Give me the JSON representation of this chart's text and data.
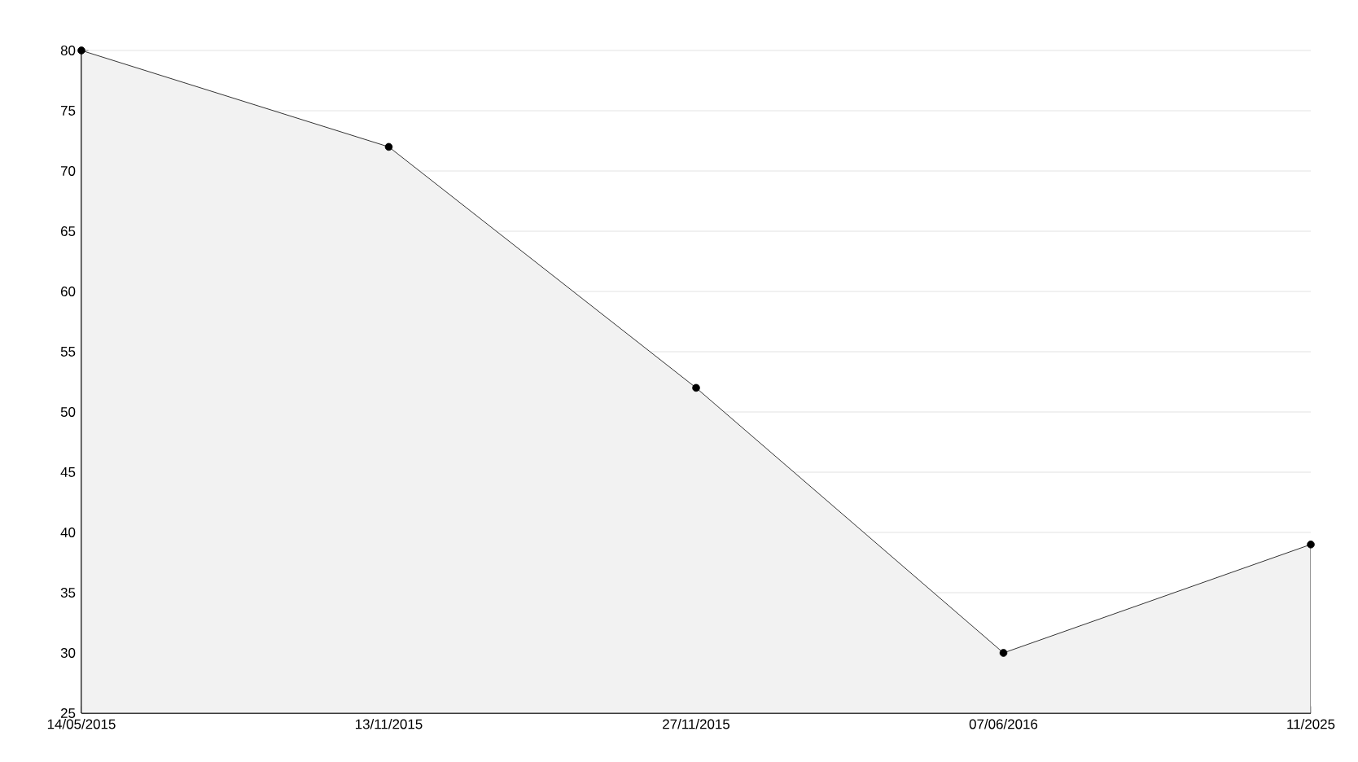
{
  "chart_data": {
    "type": "area",
    "categories": [
      "14/05/2015",
      "13/11/2015",
      "27/11/2015",
      "07/06/2016",
      "11/2025"
    ],
    "values": [
      80,
      72,
      52,
      30,
      39
    ],
    "color": "#f2f2f2",
    "ylim": [
      25,
      80
    ],
    "yticks": [
      25,
      30,
      35,
      40,
      45,
      50,
      55,
      60,
      65,
      70,
      75,
      80
    ],
    "grid": "y",
    "marker": "circle",
    "line_style": "solid"
  }
}
